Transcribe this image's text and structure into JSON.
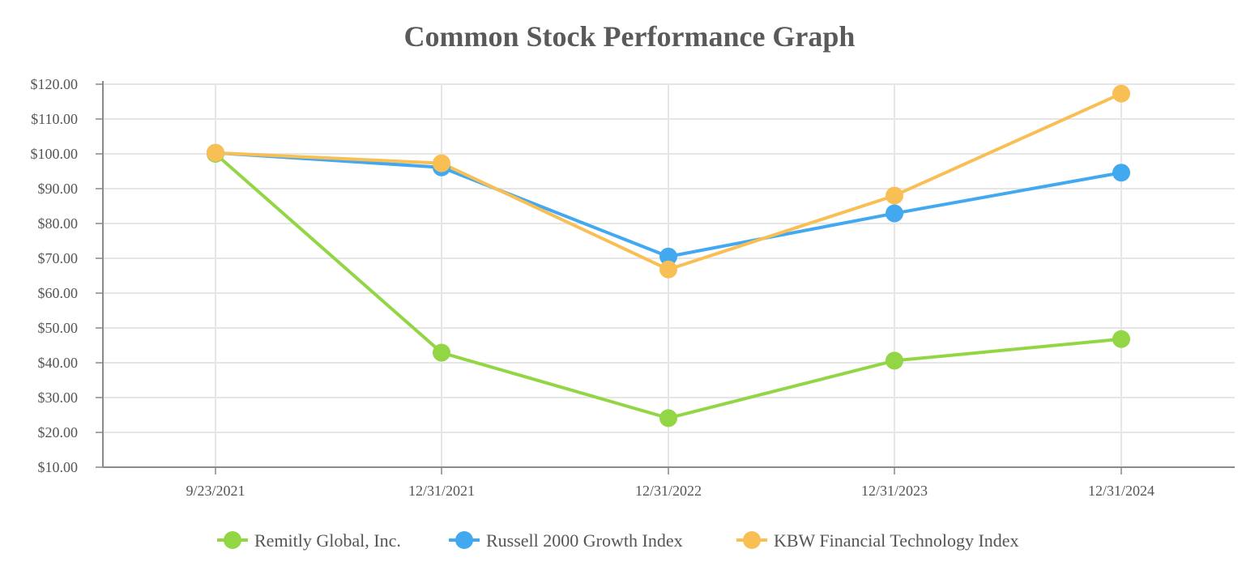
{
  "chart_data": {
    "type": "line",
    "title": "Common Stock Performance Graph",
    "xlabel": "",
    "ylabel": "",
    "categories": [
      "9/23/2021",
      "12/31/2021",
      "12/31/2022",
      "12/31/2023",
      "12/31/2024"
    ],
    "y_ticks": [
      "$10.00",
      "$20.00",
      "$30.00",
      "$40.00",
      "$50.00",
      "$60.00",
      "$70.00",
      "$80.00",
      "$90.00",
      "$100.00",
      "$110.00",
      "$120.00"
    ],
    "ylim": [
      10,
      120
    ],
    "grid": true,
    "legend_position": "bottom",
    "series": [
      {
        "name": "Remitly Global, Inc.",
        "color": "#92d645",
        "values": [
          100,
          42.9,
          24.1,
          40.6,
          46.8
        ]
      },
      {
        "name": "Russell 2000 Growth Index",
        "color": "#42a9f0",
        "values": [
          100.3,
          96.1,
          70.5,
          82.9,
          94.6
        ]
      },
      {
        "name": "KBW Financial Technology Index",
        "color": "#f8bf55",
        "values": [
          100.3,
          97.3,
          66.8,
          88.0,
          117.3
        ]
      }
    ]
  }
}
